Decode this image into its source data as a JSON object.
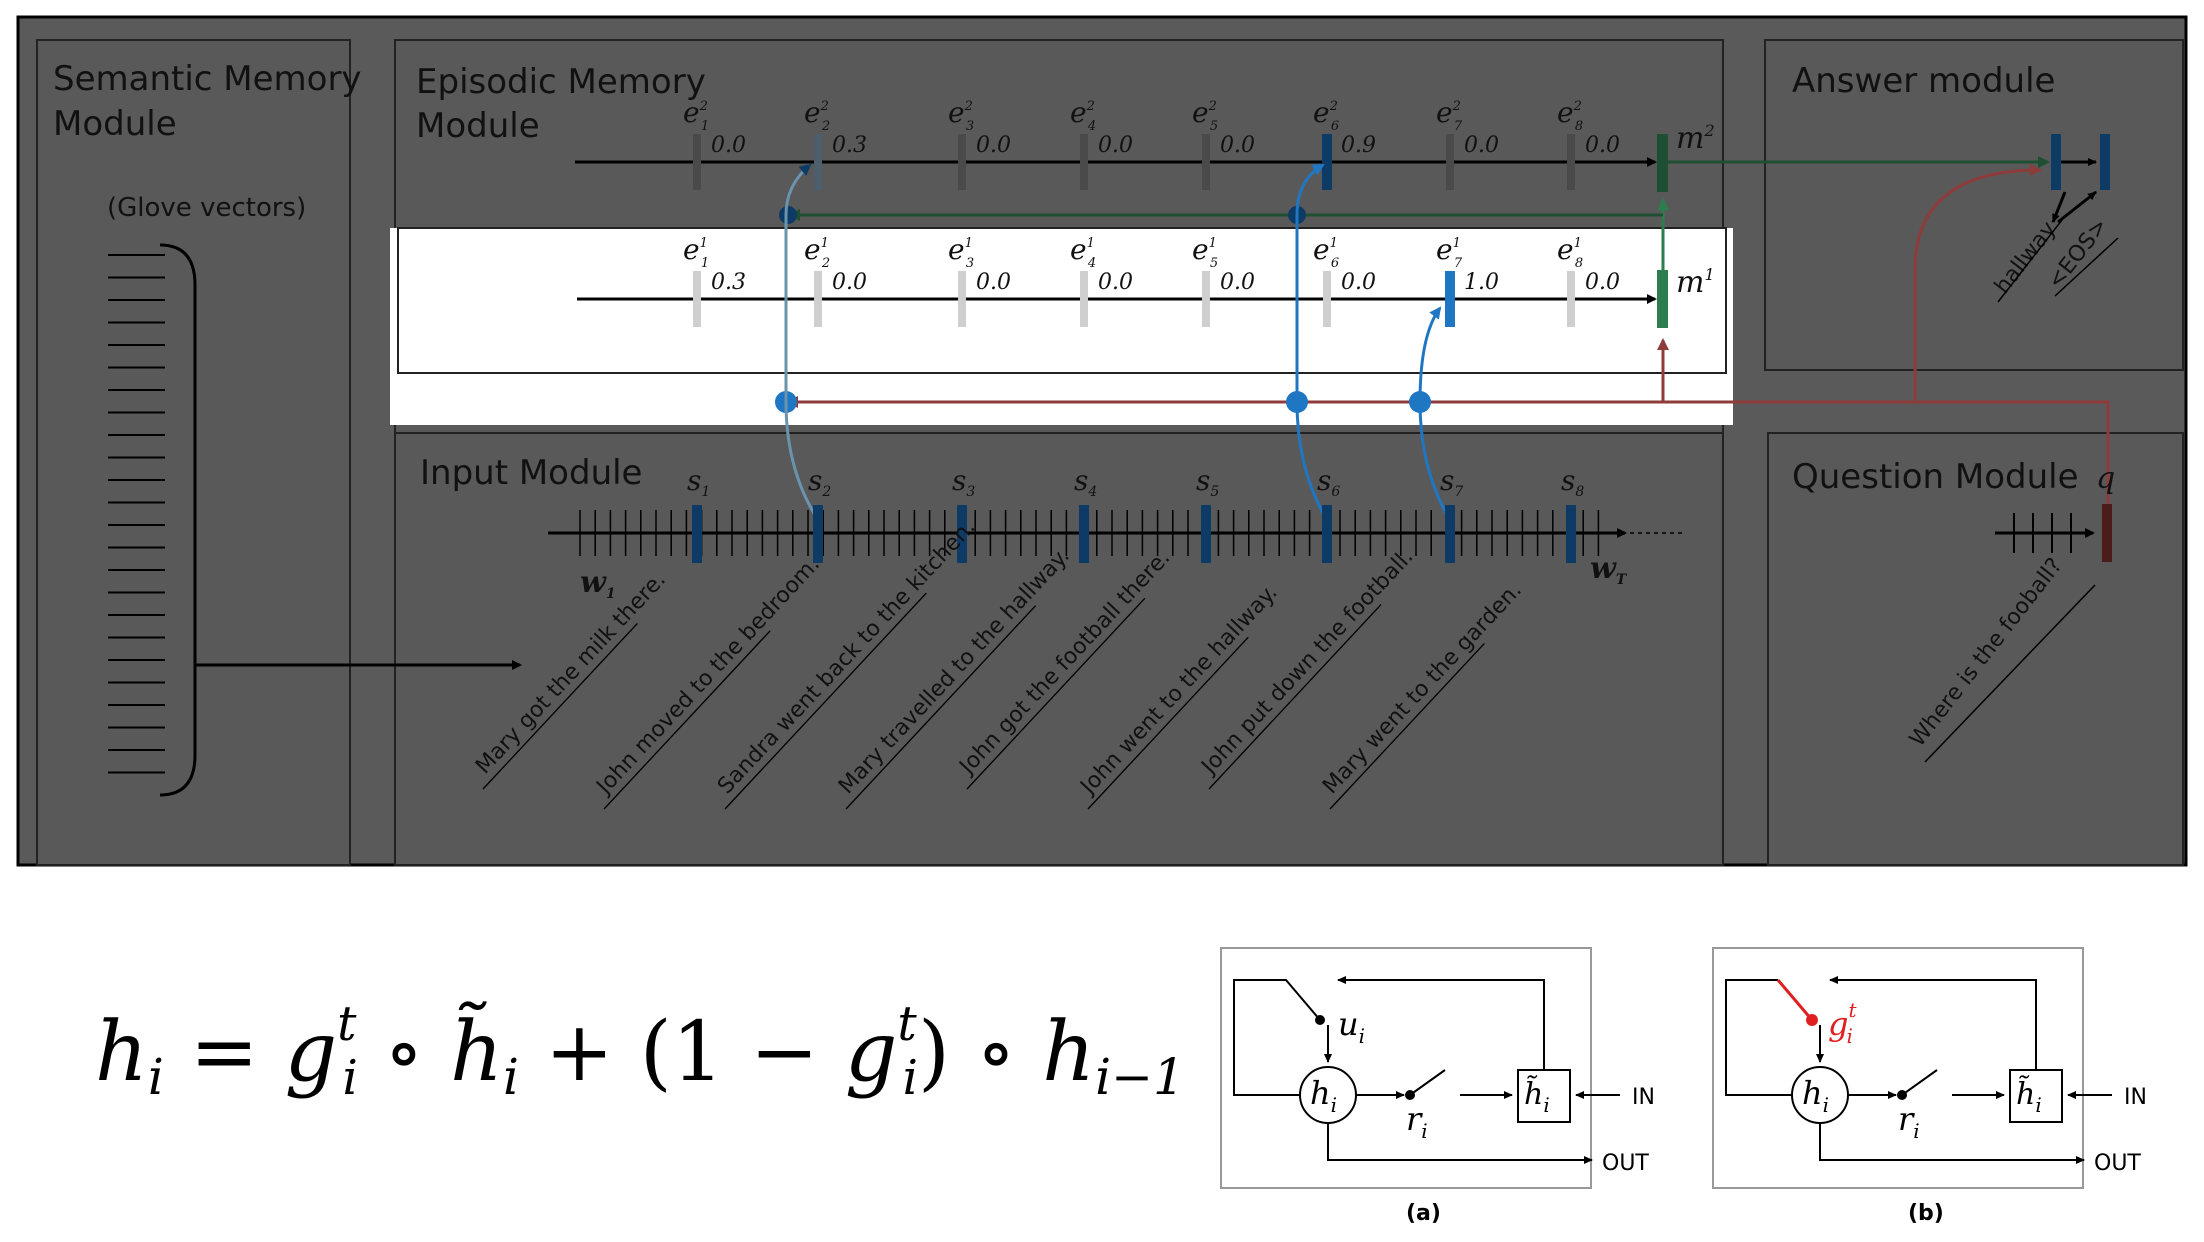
{
  "modules": {
    "semantic": {
      "title_line1": "Semantic Memory",
      "title_line2": "Module",
      "note": "(Glove vectors)"
    },
    "episodic": {
      "title_line1": "Episodic Memory",
      "title_line2": "Module"
    },
    "answer": {
      "title": "Answer module",
      "outputs": [
        "hallway",
        "<EOS>"
      ]
    },
    "input": {
      "title": "Input Module",
      "first_word": "w",
      "first_word_sub": "1",
      "last_word": "w",
      "last_word_sub": "T"
    },
    "question": {
      "title": "Question Module",
      "q_label": "q",
      "question_text": "Where is the fooball?"
    }
  },
  "episodes": {
    "pass2": {
      "label": "e",
      "sup": "2",
      "gates": [
        "0.0",
        "0.3",
        "0.0",
        "0.0",
        "0.0",
        "0.9",
        "0.0",
        "0.0"
      ],
      "memory": "m",
      "memory_sup": "2"
    },
    "pass1": {
      "label": "e",
      "sup": "1",
      "gates": [
        "0.3",
        "0.0",
        "0.0",
        "0.0",
        "0.0",
        "0.0",
        "1.0",
        "0.0"
      ],
      "memory": "m",
      "memory_sup": "1"
    }
  },
  "sentences": {
    "label": "s",
    "items": [
      "Mary got the milk there.",
      "John moved to the bedroom.",
      "Sandra went back to the kitchen.",
      "Mary travelled to the hallway.",
      "John got the football there.",
      "John went to the hallway.",
      "John put down the football.",
      "Mary went to the garden."
    ]
  },
  "equation": {
    "text": "h_i = g_i^t ∘ h̃_i + (1 − g_i^t) ∘ h_{i−1}"
  },
  "gru_diagrams": {
    "a": {
      "caption": "(a)",
      "gate": "u",
      "gate_sub": "i",
      "reset": "r",
      "reset_sub": "i",
      "hidden": "h",
      "hidden_sub": "i",
      "in_label": "IN",
      "out_label": "OUT"
    },
    "b": {
      "caption": "(b)",
      "gate": "g",
      "gate_sub": "i",
      "gate_sup": "t",
      "reset": "r",
      "reset_sub": "i",
      "hidden": "h",
      "hidden_sub": "i",
      "in_label": "IN",
      "out_label": "OUT"
    }
  },
  "colors": {
    "overlay": "#5a5a5a",
    "highlight_band": "#ffffff",
    "blue": "#1f77c4",
    "dark_blue": "#0d3b66",
    "green": "#2e7d4f",
    "maroon": "#8e3b3b",
    "gate_gray": "#cfcfcf",
    "red_gate": "#e02020"
  }
}
